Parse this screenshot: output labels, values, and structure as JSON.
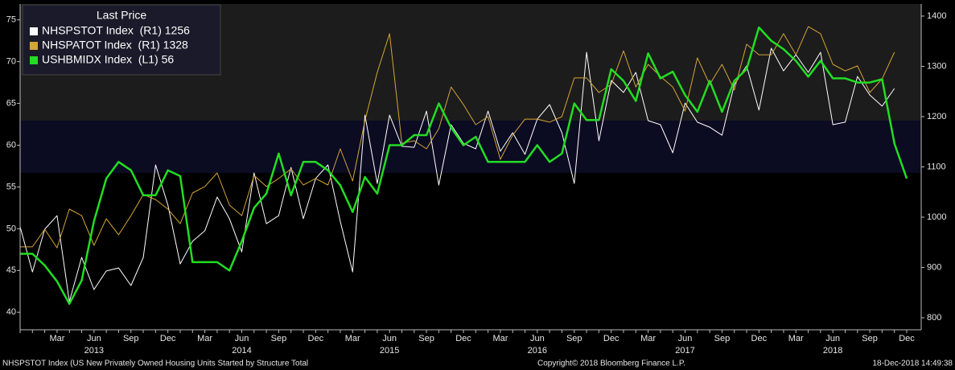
{
  "chart_data": {
    "type": "line",
    "categories": [
      null,
      null,
      null,
      "Mar",
      null,
      null,
      "Jun",
      null,
      null,
      "Sep",
      null,
      null,
      "Dec",
      null,
      null,
      "Mar",
      null,
      null,
      "Jun",
      null,
      null,
      "Sep",
      null,
      null,
      "Dec",
      null,
      null,
      "Mar",
      null,
      null,
      "Jun",
      null,
      null,
      "Sep",
      null,
      null,
      "Dec",
      null,
      null,
      "Mar",
      null,
      null,
      "Jun",
      null,
      null,
      "Sep",
      null,
      null,
      "Dec",
      null,
      null,
      "Mar",
      null,
      null,
      "Jun",
      null,
      null,
      "Sep",
      null,
      null,
      "Dec",
      null,
      null,
      "Mar",
      null,
      null,
      "Jun",
      null,
      null,
      "Sep",
      null,
      null,
      "Dec"
    ],
    "years": [
      "2013",
      "2014",
      "2015",
      "2016",
      "2017",
      "2018"
    ],
    "legend_title": "Last Price",
    "legend_position": "upper left",
    "series": [
      {
        "name": "NHSPSTOT Index  (R1) 1256",
        "color": "#ffffff",
        "axis": "y2",
        "values": [
          981,
          891,
          976,
          1003,
          832,
          920,
          856,
          893,
          899,
          864,
          920,
          1104,
          1024,
          907,
          952,
          973,
          1040,
          997,
          931,
          1088,
          987,
          1003,
          1099,
          997,
          1077,
          1104,
          992,
          891,
          1203,
          1067,
          1203,
          1141,
          1139,
          1211,
          1064,
          1184,
          1147,
          1136,
          1211,
          1131,
          1168,
          1125,
          1195,
          1224,
          1168,
          1067,
          1328,
          1152,
          1272,
          1248,
          1288,
          1192,
          1184,
          1128,
          1227,
          1189,
          1179,
          1163,
          1264,
          1301,
          1213,
          1336,
          1291,
          1323,
          1288,
          1328,
          1184,
          1189,
          1280,
          1243,
          1221,
          1256,
          null
        ]
      },
      {
        "name": "NHSPATOT Index  (R1) 1328",
        "color": "#d4a537",
        "axis": "y2",
        "values": [
          941,
          941,
          976,
          939,
          1016,
          1003,
          944,
          997,
          965,
          1003,
          1045,
          1035,
          1016,
          987,
          1048,
          1061,
          1088,
          1024,
          1003,
          1083,
          1061,
          1077,
          1096,
          1064,
          1077,
          1064,
          1136,
          1072,
          1192,
          1288,
          1365,
          1147,
          1152,
          1136,
          1176,
          1259,
          1224,
          1184,
          1200,
          1115,
          1163,
          1195,
          1195,
          1189,
          1200,
          1277,
          1277,
          1248,
          1264,
          1331,
          1259,
          1304,
          1280,
          1259,
          1211,
          1317,
          1264,
          1304,
          1253,
          1344,
          1323,
          1323,
          1365,
          1323,
          1379,
          1365,
          1304,
          1291,
          1301,
          1248,
          1275,
          1328,
          null
        ]
      },
      {
        "name": "USHBMIDX Index  (L1) 56",
        "color": "#22dd22",
        "axis": "y",
        "values": [
          47,
          47,
          45.6,
          43.7,
          41,
          43.8,
          50.9,
          56,
          58,
          57,
          54,
          54,
          57,
          56.3,
          46,
          46,
          46,
          45,
          48.5,
          52.5,
          54.2,
          59,
          54,
          58,
          58,
          57,
          55.2,
          52,
          56.2,
          54.2,
          60,
          60,
          61.2,
          61.2,
          65,
          62.1,
          60,
          61,
          58,
          58,
          58,
          58,
          60,
          58,
          59,
          65,
          63,
          63,
          69.1,
          67.7,
          65.3,
          71,
          68,
          68.8,
          66,
          64,
          67.7,
          64,
          67.7,
          69.1,
          74.1,
          72.5,
          71.5,
          70.1,
          68.2,
          70.1,
          68,
          68,
          67.5,
          67.5,
          67.9,
          60.2,
          56
        ]
      }
    ],
    "ylim": [
      37.9,
      76.9
    ],
    "yticks": [
      40,
      45,
      50,
      55,
      60,
      65,
      70,
      75
    ],
    "y2lim": [
      776,
      1424
    ],
    "y2ticks": [
      800,
      900,
      1000,
      1100,
      1200,
      1300,
      1400
    ],
    "footer": {
      "description": "NHSPSTOT Index (US New Privately Owned Housing Units Started by Structure Total",
      "copyright": "Copyright© 2018 Bloomberg Finance L.P.",
      "timestamp": "18-Dec-2018 14:49:38"
    }
  }
}
